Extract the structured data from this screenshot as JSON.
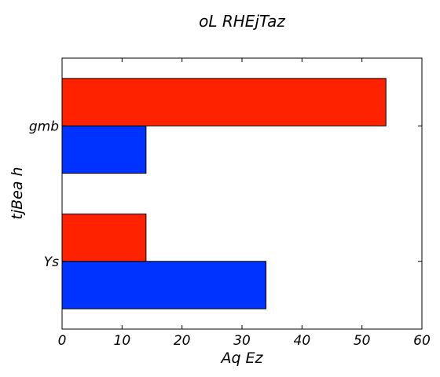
{
  "chart_data": {
    "type": "bar",
    "orientation": "horizontal",
    "title": "oL  RHEjTaz",
    "xlabel": "Aq Ez",
    "ylabel": "tjBea h",
    "categories": [
      "Ys",
      "gmb"
    ],
    "series": [
      {
        "color": "#0033ff",
        "values": [
          34,
          14
        ]
      },
      {
        "color": "#ff2200",
        "values": [
          14,
          54
        ]
      }
    ],
    "xlim": [
      0,
      60
    ],
    "xticks": [
      0,
      10,
      20,
      30,
      40,
      50,
      60
    ],
    "grid": false,
    "legend": "none"
  }
}
